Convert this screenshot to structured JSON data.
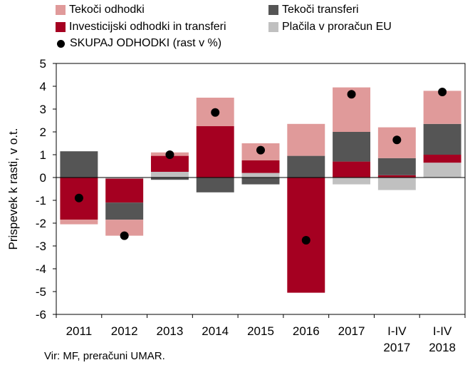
{
  "legend": {
    "items": [
      {
        "label": "Tekoči odhodki",
        "color": "#e09a9a"
      },
      {
        "label": "Tekoči transferi",
        "color": "#555555"
      },
      {
        "label": "Investicijski odhodki in transferi",
        "color": "#a50021"
      },
      {
        "label": "Plačila v proračun EU",
        "color": "#c0c0c0"
      },
      {
        "label": "SKUPAJ ODHODKI (rast v %)",
        "color": "#000000"
      }
    ]
  },
  "source": "Vir: MF, preračuni UMAR.",
  "chart_data": {
    "type": "bar",
    "stacked": true,
    "categories": [
      [
        "2011"
      ],
      [
        "2012"
      ],
      [
        "2013"
      ],
      [
        "2014"
      ],
      [
        "2015"
      ],
      [
        "2016"
      ],
      [
        "2017"
      ],
      [
        "I-IV",
        "2017"
      ],
      [
        "I-IV",
        "2018"
      ]
    ],
    "ylabel": "Prispevek k rasti, v o.t.",
    "ylim": [
      -6,
      5
    ],
    "yticks": [
      5,
      4,
      3,
      2,
      1,
      0,
      -1,
      -2,
      -3,
      -4,
      -5,
      -6
    ],
    "grid": false,
    "series": [
      {
        "name": "Plačila v proračun EU",
        "color": "#c0c0c0",
        "values": [
          0.0,
          -0.05,
          0.25,
          0.0,
          0.2,
          0.0,
          -0.3,
          -0.55,
          0.65
        ]
      },
      {
        "name": "Investicijski odhodki in transferi",
        "color": "#a50021",
        "values": [
          -1.85,
          -1.05,
          0.7,
          2.25,
          0.55,
          -5.05,
          0.7,
          0.1,
          0.35
        ]
      },
      {
        "name": "Tekoči transferi",
        "color": "#555555",
        "values": [
          1.15,
          -0.75,
          -0.1,
          -0.65,
          -0.3,
          0.95,
          1.3,
          0.75,
          1.35
        ]
      },
      {
        "name": "Tekoči odhodki",
        "color": "#e09a9a",
        "values": [
          -0.2,
          -0.7,
          0.15,
          1.25,
          0.75,
          1.4,
          1.95,
          1.35,
          1.45
        ]
      }
    ],
    "total": {
      "name": "SKUPAJ ODHODKI (rast v %)",
      "color": "#000000",
      "values": [
        -0.9,
        -2.55,
        1.0,
        2.85,
        1.2,
        -2.75,
        3.65,
        1.65,
        3.75
      ]
    }
  }
}
